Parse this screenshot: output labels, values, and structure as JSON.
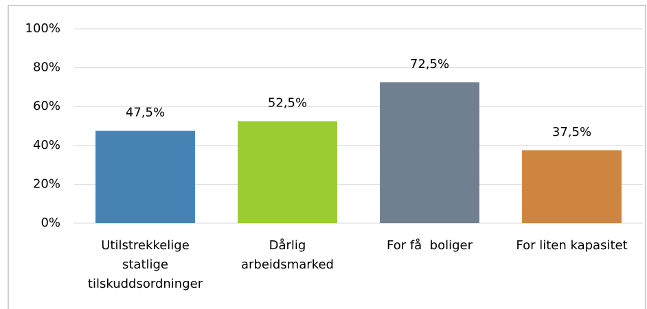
{
  "chart_data": {
    "type": "bar",
    "categories": [
      [
        "Utilstrekkelige",
        "statlige",
        "tilskuddsordninger"
      ],
      [
        "Dårlig",
        "arbeidsmarked"
      ],
      [
        "For få  boliger"
      ],
      [
        "For liten kapasitet"
      ]
    ],
    "values": [
      47.5,
      52.5,
      72.5,
      37.5
    ],
    "value_labels": [
      "47,5%",
      "52,5%",
      "72,5%",
      "37,5%"
    ],
    "colors": [
      "#4682b4",
      "#9acd32",
      "#708090",
      "#cd853f"
    ],
    "ylim": [
      0,
      100
    ],
    "yticks": [
      {
        "value": 0,
        "label": "0%"
      },
      {
        "value": 20,
        "label": "20%"
      },
      {
        "value": 40,
        "label": "40%"
      },
      {
        "value": 60,
        "label": "60%"
      },
      {
        "value": 80,
        "label": "80%"
      },
      {
        "value": 100,
        "label": "100%"
      }
    ],
    "grid": true
  }
}
